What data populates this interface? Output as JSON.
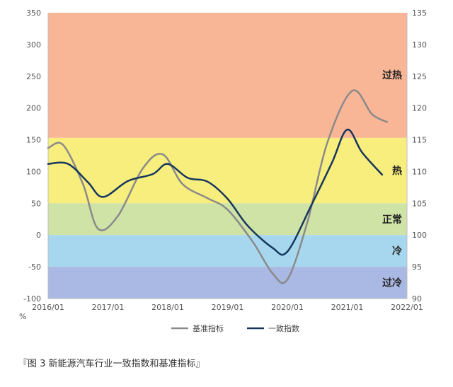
{
  "chart_data": {
    "type": "line",
    "title": "",
    "x_ticks": [
      "2016/01",
      "2017/01",
      "2018/01",
      "2019/01",
      "2020/01",
      "2021/01",
      "2022/01"
    ],
    "y_left": {
      "label": "%",
      "min": -100,
      "max": 350,
      "ticks": [
        350,
        300,
        250,
        200,
        150,
        100,
        50,
        0,
        -50,
        -100
      ]
    },
    "y_right": {
      "min": 90,
      "max": 135,
      "ticks": [
        135,
        130,
        125,
        120,
        115,
        110,
        105,
        100,
        95,
        90
      ]
    },
    "zones": [
      {
        "label": "过热",
        "from": 153,
        "to": 350,
        "color": "#f9b697"
      },
      {
        "label": "热",
        "from": 50,
        "to": 153,
        "color": "#f7ee7e"
      },
      {
        "label": "正常",
        "from": 0,
        "to": 50,
        "color": "#cfe3a6"
      },
      {
        "label": "冷",
        "from": -50,
        "to": 0,
        "color": "#a7d7ee"
      },
      {
        "label": "过冷",
        "from": -100,
        "to": -50,
        "color": "#a9b9e3"
      }
    ],
    "series": [
      {
        "name": "基准指标",
        "axis": "left",
        "color": "#8a8a8a",
        "points": [
          [
            "2016/01",
            137
          ],
          [
            "2016/04",
            142
          ],
          [
            "2016/08",
            80
          ],
          [
            "2016/11",
            10
          ],
          [
            "2017/03",
            30
          ],
          [
            "2017/08",
            105
          ],
          [
            "2017/12",
            127
          ],
          [
            "2018/04",
            80
          ],
          [
            "2018/09",
            58
          ],
          [
            "2019/01",
            40
          ],
          [
            "2019/06",
            -10
          ],
          [
            "2019/10",
            -60
          ],
          [
            "2020/01",
            -70
          ],
          [
            "2020/05",
            20
          ],
          [
            "2020/09",
            145
          ],
          [
            "2021/02",
            227
          ],
          [
            "2021/06",
            190
          ],
          [
            "2021/09",
            178
          ]
        ]
      },
      {
        "name": "一致指数",
        "axis": "right",
        "color": "#17365d",
        "points": [
          [
            "2016/01",
            111.2
          ],
          [
            "2016/05",
            111.2
          ],
          [
            "2016/09",
            108.3
          ],
          [
            "2016/12",
            106.0
          ],
          [
            "2017/05",
            108.5
          ],
          [
            "2017/10",
            109.6
          ],
          [
            "2018/01",
            111.2
          ],
          [
            "2018/05",
            109.0
          ],
          [
            "2018/09",
            108.4
          ],
          [
            "2019/01",
            105.7
          ],
          [
            "2019/05",
            101.5
          ],
          [
            "2019/10",
            98.0
          ],
          [
            "2020/01",
            97.4
          ],
          [
            "2020/06",
            105.0
          ],
          [
            "2020/10",
            111.5
          ],
          [
            "2021/01",
            116.6
          ],
          [
            "2021/04",
            113.0
          ],
          [
            "2021/08",
            109.5
          ]
        ]
      }
    ]
  },
  "caption": "『图 3 新能源汽车行业一致指数和基准指标』"
}
